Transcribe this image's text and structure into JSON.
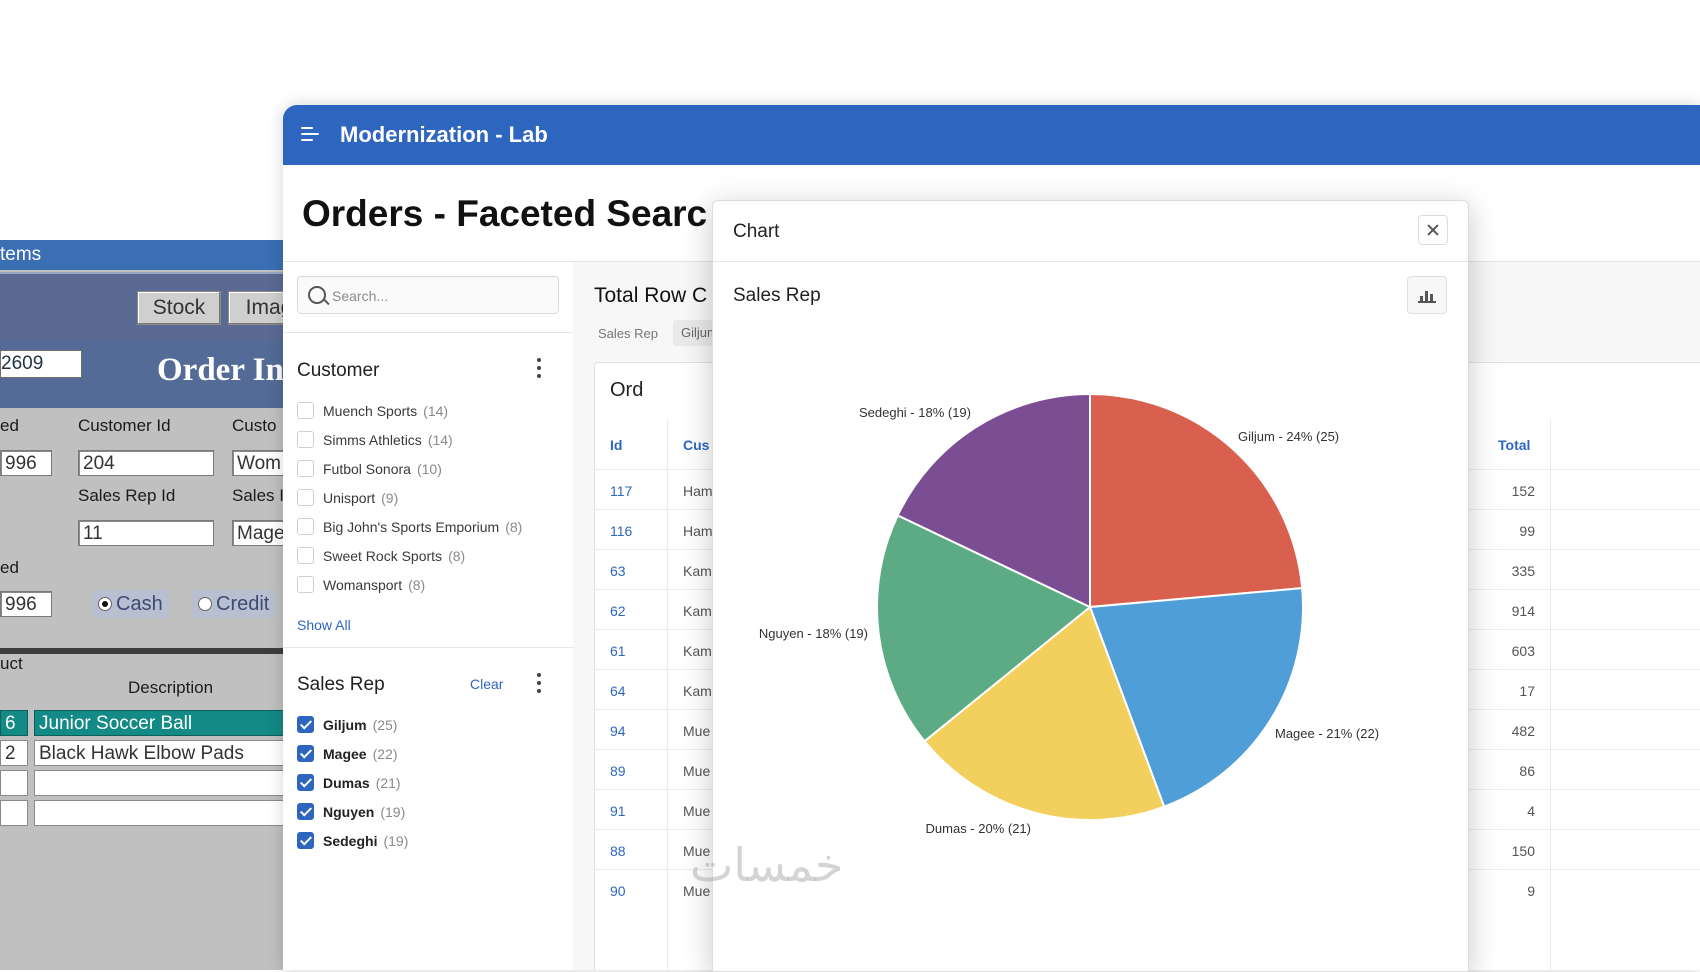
{
  "legacy": {
    "title": "tems",
    "toolbar": {
      "stock_label": "Stock",
      "image_label": "Imag"
    },
    "order_id": "2609",
    "header_text": "Order Info",
    "labels": {
      "ordered": "ed",
      "customer_id": "Customer Id",
      "customer": "Custo",
      "sales_rep_id": "Sales Rep Id",
      "sales_rep": "Sales I",
      "shipped": "ed",
      "product": "uct",
      "description": "Description"
    },
    "values": {
      "date_ordered": "996",
      "customer_id": "204",
      "customer_name": "Wom",
      "sales_rep_id": "11",
      "sales_rep_name": "Mage",
      "date_shipped": "996"
    },
    "payment": {
      "cash_label": "Cash",
      "credit_label": "Credit",
      "selected": "Cash"
    },
    "lines": [
      {
        "qty": "6",
        "description": "Junior Soccer Ball",
        "selected": true
      },
      {
        "qty": "2",
        "description": "Black Hawk Elbow Pads",
        "selected": false
      }
    ]
  },
  "app": {
    "title": "Modernization - Lab",
    "page_title": "Orders - Faceted Searc",
    "search_placeholder": "Search...",
    "customer_facet": {
      "label": "Customer",
      "items": [
        {
          "name": "Muench Sports",
          "count": "(14)"
        },
        {
          "name": "Simms Athletics",
          "count": "(14)"
        },
        {
          "name": "Futbol Sonora",
          "count": "(10)"
        },
        {
          "name": "Unisport",
          "count": "(9)"
        },
        {
          "name": "Big John's Sports Emporium",
          "count": "(8)"
        },
        {
          "name": "Sweet Rock Sports",
          "count": "(8)"
        },
        {
          "name": "Womansport",
          "count": "(8)"
        }
      ],
      "show_all": "Show All"
    },
    "sales_rep_facet": {
      "label": "Sales Rep",
      "clear": "Clear",
      "items": [
        {
          "name": "Giljum",
          "count": "(25)",
          "checked": true
        },
        {
          "name": "Magee",
          "count": "(22)",
          "checked": true
        },
        {
          "name": "Dumas",
          "count": "(21)",
          "checked": true
        },
        {
          "name": "Nguyen",
          "count": "(19)",
          "checked": true
        },
        {
          "name": "Sedeghi",
          "count": "(19)",
          "checked": true
        }
      ]
    },
    "report": {
      "total_row_label": "Total Row C",
      "filter_label": "Sales Rep",
      "filter_chip": "Giljum",
      "title": "Ord",
      "col_id": "Id",
      "col_customer": "Cus",
      "col_total": "Total",
      "rows": [
        {
          "id": "117",
          "customer": "Ham",
          "total": "152"
        },
        {
          "id": "116",
          "customer": "Ham",
          "total": "99"
        },
        {
          "id": "63",
          "customer": "Kam",
          "total": "335"
        },
        {
          "id": "62",
          "customer": "Kam",
          "total": "914"
        },
        {
          "id": "61",
          "customer": "Kam",
          "total": "603"
        },
        {
          "id": "64",
          "customer": "Kam",
          "total": "17"
        },
        {
          "id": "94",
          "customer": "Mue",
          "total": "482"
        },
        {
          "id": "89",
          "customer": "Mue",
          "total": "86"
        },
        {
          "id": "91",
          "customer": "Mue",
          "total": "4"
        },
        {
          "id": "88",
          "customer": "Mue",
          "total": "150"
        },
        {
          "id": "90",
          "customer": "Mue",
          "total": "9"
        }
      ]
    }
  },
  "modal": {
    "title": "Chart",
    "close_icon": "close-icon",
    "chart_button_icon": "bar-chart-icon"
  },
  "watermark": "خمسات",
  "chart_data": {
    "type": "pie",
    "title": "Sales Rep",
    "slices": [
      {
        "name": "Giljum",
        "value": 25,
        "percent": 24,
        "label": "Giljum - 24% (25)",
        "color": "#d9604f"
      },
      {
        "name": "Magee",
        "value": 22,
        "percent": 21,
        "label": "Magee - 21% (22)",
        "color": "#4f9ed8"
      },
      {
        "name": "Dumas",
        "value": 21,
        "percent": 20,
        "label": "Dumas - 20% (21)",
        "color": "#f3cf5d"
      },
      {
        "name": "Nguyen",
        "value": 19,
        "percent": 18,
        "label": "Nguyen - 18% (19)",
        "color": "#5dab84"
      },
      {
        "name": "Sedeghi",
        "value": 19,
        "percent": 18,
        "label": "Sedeghi - 18% (19)",
        "color": "#7b4e94"
      }
    ]
  }
}
